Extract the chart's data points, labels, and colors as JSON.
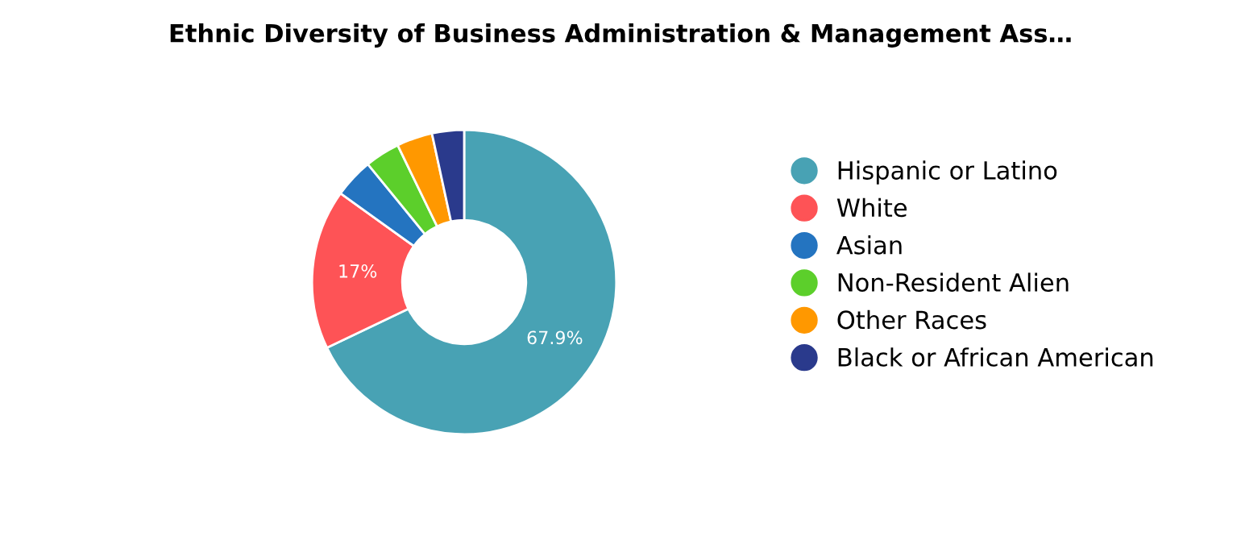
{
  "chart_data": {
    "type": "donut",
    "title": "Ethnic Diversity of Business Administration & Management Ass…",
    "categories": [
      "Hispanic or Latino",
      "White",
      "Asian",
      "Non-Resident Alien",
      "Other Races",
      "Black or African American"
    ],
    "values": [
      67.9,
      17,
      4.2,
      3.7,
      3.8,
      3.4
    ],
    "colors": [
      "#48a2b4",
      "#fe5356",
      "#2474c0",
      "#5ccf2b",
      "#ff9800",
      "#2a3a8c"
    ],
    "value_labels": [
      "67.9%",
      "17%",
      null,
      null,
      null,
      null
    ],
    "legend": "right"
  }
}
